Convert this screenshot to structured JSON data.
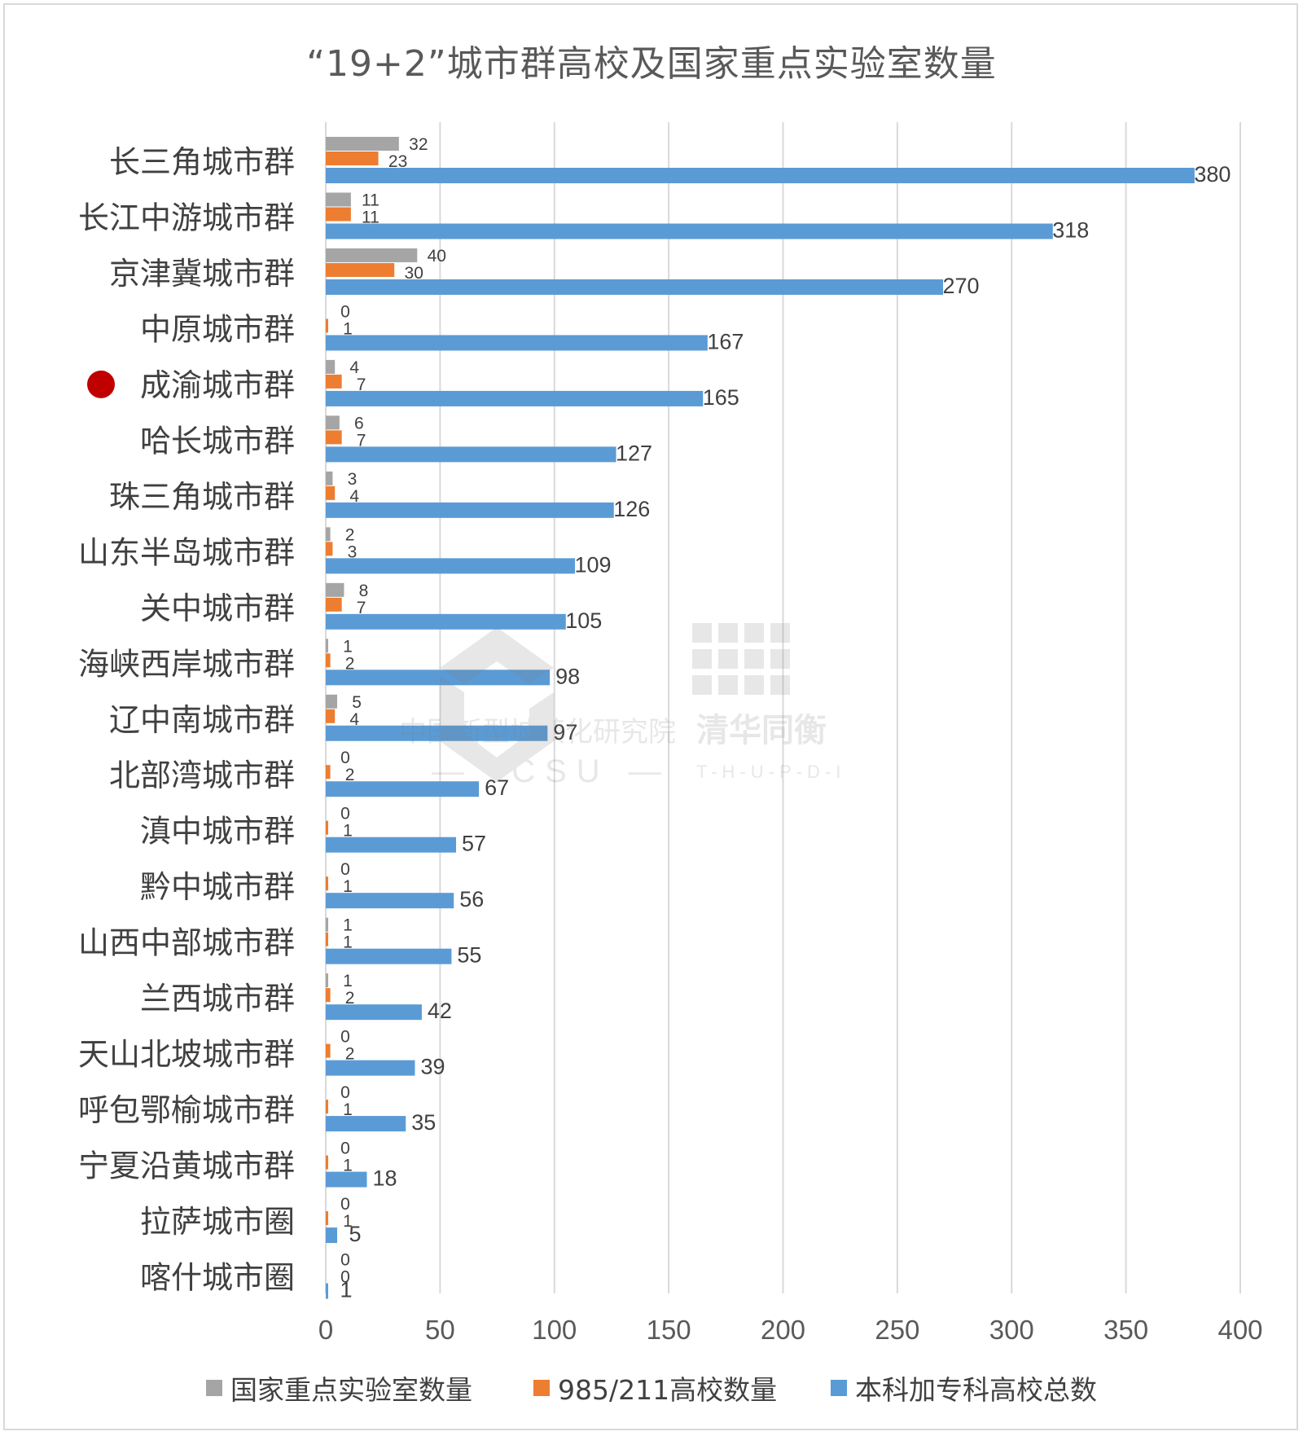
{
  "title": "“19+2”城市群高校及国家重点实验室数量",
  "watermark": {
    "org_cn": "中国新型城镇化研究院",
    "org_en": "— ICSU —",
    "brand_cn": "清华同衡",
    "brand_en": "T-H-U-P-D-I"
  },
  "highlight": {
    "category": "成渝城市群",
    "color": "#c00000"
  },
  "chart_data": {
    "type": "bar",
    "orientation": "horizontal",
    "categories": [
      "长三角城市群",
      "长江中游城市群",
      "京津冀城市群",
      "中原城市群",
      "成渝城市群",
      "哈长城市群",
      "珠三角城市群",
      "山东半岛城市群",
      "关中城市群",
      "海峡西岸城市群",
      "辽中南城市群",
      "北部湾城市群",
      "滇中城市群",
      "黔中城市群",
      "山西中部城市群",
      "兰西城市群",
      "天山北坡城市群",
      "呼包鄂榆城市群",
      "宁夏沿黄城市群",
      "拉萨城市圈",
      "喀什城市圈"
    ],
    "series": [
      {
        "name": "国家重点实验室数量",
        "color": "#a5a5a5",
        "values": [
          32,
          11,
          40,
          0,
          4,
          6,
          3,
          2,
          8,
          1,
          5,
          0,
          0,
          0,
          1,
          1,
          0,
          0,
          0,
          0,
          0
        ]
      },
      {
        "name": "985/211高校数量",
        "color": "#ed7d31",
        "values": [
          23,
          11,
          30,
          1,
          7,
          7,
          4,
          3,
          7,
          2,
          4,
          2,
          1,
          1,
          1,
          2,
          2,
          1,
          1,
          1,
          0
        ]
      },
      {
        "name": "本科加专科高校总数",
        "color": "#5b9bd5",
        "values": [
          380,
          318,
          270,
          167,
          165,
          127,
          126,
          109,
          105,
          98,
          97,
          67,
          57,
          56,
          55,
          42,
          39,
          35,
          18,
          5,
          1
        ]
      }
    ],
    "xlim": [
      0,
      400
    ],
    "xticks": [
      0,
      50,
      100,
      150,
      200,
      250,
      300,
      350,
      400
    ],
    "grid": true,
    "legend_position": "bottom",
    "data_labels": true
  }
}
